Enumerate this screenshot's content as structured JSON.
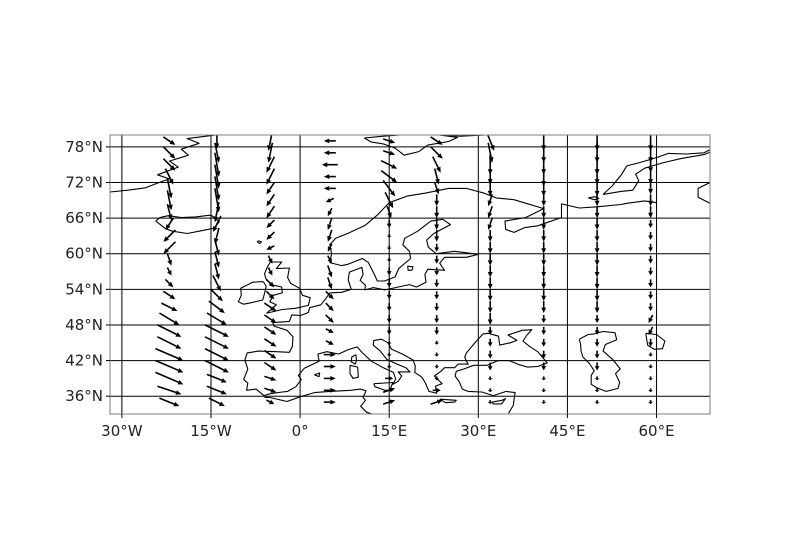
{
  "map": {
    "type": "quiver-map",
    "projection": "PlateCarree",
    "extent": {
      "lon": [
        -32,
        69
      ],
      "lat": [
        33,
        80
      ]
    },
    "gridlines": true,
    "coastlines": true,
    "lon_ticks": [
      {
        "value": -30,
        "label": "30°W"
      },
      {
        "value": -15,
        "label": "15°W"
      },
      {
        "value": 0,
        "label": "0°"
      },
      {
        "value": 15,
        "label": "15°E"
      },
      {
        "value": 30,
        "label": "30°E"
      },
      {
        "value": 45,
        "label": "45°E"
      },
      {
        "value": 60,
        "label": "60°E"
      }
    ],
    "lat_ticks": [
      {
        "value": 78,
        "label": "78°N"
      },
      {
        "value": 72,
        "label": "72°N"
      },
      {
        "value": 66,
        "label": "66°N"
      },
      {
        "value": 60,
        "label": "60°N"
      },
      {
        "value": 54,
        "label": "54°N"
      },
      {
        "value": 48,
        "label": "48°N"
      },
      {
        "value": 42,
        "label": "42°N"
      },
      {
        "value": 36,
        "label": "36°N"
      }
    ],
    "colors": {
      "arrow": "#000000",
      "coast": "#000000",
      "grid": "#000000",
      "frame": "#808080"
    }
  },
  "chart_data": {
    "type": "quiver",
    "quiver_lons": [
      -22,
      -14,
      -5,
      5,
      15,
      23,
      32,
      41,
      50,
      59
    ],
    "quiver_lats": [
      79,
      77,
      75,
      73,
      71,
      69,
      67,
      65,
      63,
      61,
      59,
      57,
      55,
      53,
      51,
      49,
      47,
      45,
      43,
      41,
      39,
      37,
      35
    ],
    "vectors": {
      "-22": [
        [
          3,
          -2
        ],
        [
          3,
          -3
        ],
        [
          3,
          -3
        ],
        [
          2,
          -4
        ],
        [
          1,
          -5
        ],
        [
          1,
          -5
        ],
        [
          1,
          -4
        ],
        [
          -2,
          -3
        ],
        [
          -3,
          -3
        ],
        [
          -3,
          -3
        ],
        [
          1,
          -3
        ],
        [
          1,
          -2
        ],
        [
          2,
          -2
        ],
        [
          3,
          -2
        ],
        [
          4,
          -2
        ],
        [
          5,
          -3
        ],
        [
          6,
          -3
        ],
        [
          6,
          -3
        ],
        [
          7,
          -3
        ],
        [
          7,
          -3
        ],
        [
          7,
          -3
        ],
        [
          6,
          -2
        ],
        [
          5,
          -2
        ]
      ],
      "-14": [
        [
          0,
          -4
        ],
        [
          1,
          -5
        ],
        [
          1,
          -6
        ],
        [
          1,
          -6
        ],
        [
          1,
          -6
        ],
        [
          1,
          -6
        ],
        [
          -1,
          -5
        ],
        [
          -2,
          -4
        ],
        [
          -1,
          -4
        ],
        [
          1,
          -4
        ],
        [
          1,
          -4
        ],
        [
          1,
          -4
        ],
        [
          2,
          -4
        ],
        [
          3,
          -3
        ],
        [
          4,
          -3
        ],
        [
          5,
          -3
        ],
        [
          6,
          -3
        ],
        [
          6,
          -3
        ],
        [
          6,
          -3
        ],
        [
          6,
          -3
        ],
        [
          5,
          -2
        ],
        [
          5,
          -2
        ],
        [
          4,
          -2
        ]
      ],
      "-5": [
        [
          -1,
          -5
        ],
        [
          -1,
          -5
        ],
        [
          -2,
          -4
        ],
        [
          -2,
          -4
        ],
        [
          -2,
          -3
        ],
        [
          -2,
          -3
        ],
        [
          -2,
          -3
        ],
        [
          -2,
          -2
        ],
        [
          -2,
          -2
        ],
        [
          -2,
          -1
        ],
        [
          1,
          -2
        ],
        [
          1,
          -2
        ],
        [
          2,
          -2
        ],
        [
          2,
          -2
        ],
        [
          3,
          -2
        ],
        [
          3,
          -2
        ],
        [
          3,
          -2
        ],
        [
          3,
          -2
        ],
        [
          3,
          -2
        ],
        [
          3,
          -2
        ],
        [
          3,
          -1
        ],
        [
          3,
          -1
        ],
        [
          2,
          -1
        ]
      ],
      "5": [
        [
          -3,
          0
        ],
        [
          -3,
          0
        ],
        [
          -4,
          0
        ],
        [
          -3,
          0
        ],
        [
          -3,
          0
        ],
        [
          -2,
          -1
        ],
        [
          -1,
          -2
        ],
        [
          -1,
          -3
        ],
        [
          -1,
          -3
        ],
        [
          -1,
          -2
        ],
        [
          1,
          -2
        ],
        [
          1,
          -3
        ],
        [
          1,
          -3
        ],
        [
          2,
          -2
        ],
        [
          2,
          -2
        ],
        [
          2,
          -2
        ],
        [
          2,
          -1
        ],
        [
          2,
          -1
        ],
        [
          3,
          0
        ],
        [
          3,
          0
        ],
        [
          3,
          0
        ],
        [
          3,
          0
        ],
        [
          3,
          0
        ]
      ],
      "15": [
        [
          3,
          -1
        ],
        [
          3,
          -1
        ],
        [
          4,
          -2
        ],
        [
          4,
          -3
        ],
        [
          3,
          -4
        ],
        [
          2,
          -4
        ],
        [
          1,
          -3
        ],
        [
          0,
          -2
        ],
        [
          0,
          -1
        ],
        [
          0,
          -1
        ],
        [
          0,
          -1
        ],
        [
          0,
          -2
        ],
        [
          0,
          -2
        ],
        [
          0,
          -2
        ],
        [
          0,
          -2
        ],
        [
          0,
          -2
        ],
        [
          0,
          -2
        ],
        [
          0,
          -1
        ],
        [
          0,
          -1
        ],
        [
          0,
          -1
        ],
        [
          2,
          0
        ],
        [
          3,
          1
        ],
        [
          3,
          1
        ]
      ],
      "23": [
        [
          3,
          -2
        ],
        [
          3,
          -3
        ],
        [
          2,
          -4
        ],
        [
          1,
          -4
        ],
        [
          1,
          -3
        ],
        [
          0,
          -3
        ],
        [
          0,
          -3
        ],
        [
          0,
          -3
        ],
        [
          0,
          -3
        ],
        [
          0,
          -2
        ],
        [
          0,
          -2
        ],
        [
          0,
          -2
        ],
        [
          0,
          -2
        ],
        [
          0,
          -2
        ],
        [
          0,
          -2
        ],
        [
          0,
          -2
        ],
        [
          0,
          -2
        ],
        [
          0,
          -1
        ],
        [
          0,
          -1
        ],
        [
          0,
          -1
        ],
        [
          0,
          -1
        ],
        [
          2,
          0
        ],
        [
          3,
          1
        ]
      ],
      "32": [
        [
          2,
          -5
        ],
        [
          1,
          -5
        ],
        [
          0,
          -5
        ],
        [
          0,
          -4
        ],
        [
          0,
          -4
        ],
        [
          -1,
          -3
        ],
        [
          -1,
          -3
        ],
        [
          -1,
          -3
        ],
        [
          0,
          -3
        ],
        [
          0,
          -3
        ],
        [
          0,
          -3
        ],
        [
          0,
          -3
        ],
        [
          0,
          -3
        ],
        [
          0,
          -3
        ],
        [
          0,
          -3
        ],
        [
          0,
          -3
        ],
        [
          0,
          -2
        ],
        [
          0,
          -2
        ],
        [
          0,
          -2
        ],
        [
          0,
          -2
        ],
        [
          0,
          -1
        ],
        [
          0,
          -1
        ],
        [
          0,
          -1
        ]
      ],
      "41": [
        [
          0,
          -5
        ],
        [
          0,
          -5
        ],
        [
          0,
          -5
        ],
        [
          0,
          -5
        ],
        [
          0,
          -4
        ],
        [
          0,
          -3
        ],
        [
          0,
          -3
        ],
        [
          0,
          -3
        ],
        [
          0,
          -3
        ],
        [
          0,
          -3
        ],
        [
          0,
          -3
        ],
        [
          0,
          -3
        ],
        [
          0,
          -3
        ],
        [
          0,
          -3
        ],
        [
          0,
          -3
        ],
        [
          0,
          -2
        ],
        [
          0,
          -2
        ],
        [
          0,
          -2
        ],
        [
          0,
          -2
        ],
        [
          0,
          -2
        ],
        [
          0,
          -1
        ],
        [
          0,
          -1
        ],
        [
          0,
          -1
        ]
      ],
      "50": [
        [
          0,
          -5
        ],
        [
          0,
          -5
        ],
        [
          0,
          -5
        ],
        [
          0,
          -4
        ],
        [
          0,
          -4
        ],
        [
          0,
          -3
        ],
        [
          0,
          -3
        ],
        [
          0,
          -3
        ],
        [
          0,
          -3
        ],
        [
          0,
          -3
        ],
        [
          0,
          -3
        ],
        [
          0,
          -3
        ],
        [
          0,
          -3
        ],
        [
          0,
          -3
        ],
        [
          0,
          -3
        ],
        [
          0,
          -2
        ],
        [
          0,
          -2
        ],
        [
          0,
          -2
        ],
        [
          0,
          -2
        ],
        [
          0,
          -2
        ],
        [
          0,
          -1
        ],
        [
          0,
          -1
        ],
        [
          0,
          -1
        ]
      ],
      "59": [
        [
          0,
          -5
        ],
        [
          0,
          -5
        ],
        [
          0,
          -4
        ],
        [
          0,
          -4
        ],
        [
          0,
          -3
        ],
        [
          0,
          -3
        ],
        [
          0,
          -3
        ],
        [
          0,
          -2
        ],
        [
          0,
          -2
        ],
        [
          0,
          -2
        ],
        [
          0,
          -2
        ],
        [
          0,
          -2
        ],
        [
          0,
          -2
        ],
        [
          0,
          -2
        ],
        [
          0,
          -2
        ],
        [
          -1,
          -2
        ],
        [
          -1,
          -2
        ],
        [
          0,
          -2
        ],
        [
          0,
          -1
        ],
        [
          0,
          -1
        ],
        [
          0,
          -1
        ],
        [
          0,
          -1
        ],
        [
          0,
          -1
        ]
      ]
    }
  }
}
